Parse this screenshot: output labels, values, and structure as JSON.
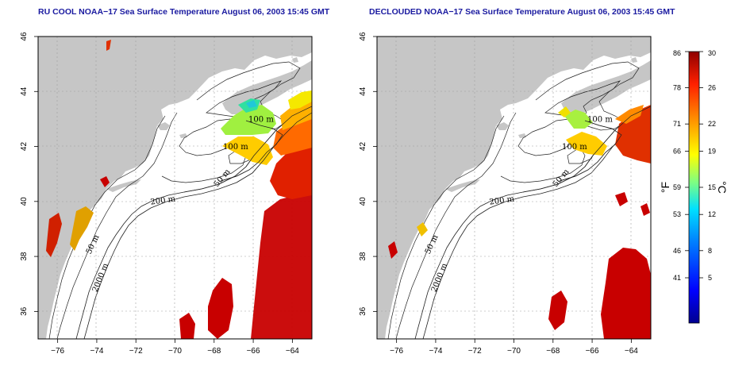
{
  "titles": {
    "left": "RU COOL NOAA−17 Sea Surface Temperature August 06, 2003 15:45 GMT",
    "right": "DECLOUDED NOAA−17 Sea Surface Temperature August 06, 2003 15:45 GMT"
  },
  "axes": {
    "x_ticks": [
      -76,
      -74,
      -72,
      -70,
      -68,
      -66,
      -64
    ],
    "x_labels": [
      "−76",
      "−74",
      "−72",
      "−70",
      "−68",
      "−66",
      "−64"
    ],
    "y_ticks": [
      36,
      38,
      40,
      42,
      44,
      46
    ],
    "y_labels": [
      "36",
      "38",
      "40",
      "42",
      "44",
      "46"
    ],
    "lon_range": [
      -77,
      -63
    ],
    "lat_range": [
      35,
      46
    ]
  },
  "contour_labels": [
    {
      "text": "100 m",
      "lon": -65.6,
      "lat": 42.9
    },
    {
      "text": "100 m",
      "lon": -66.9,
      "lat": 41.9
    },
    {
      "text": "50 m",
      "lon": -67.5,
      "lat": 40.8
    },
    {
      "text": "200 m",
      "lon": -70.6,
      "lat": 39.95
    },
    {
      "text": "50 m",
      "lon": -74.1,
      "lat": 38.4
    },
    {
      "text": "2000 m",
      "lon": -73.7,
      "lat": 37.2
    }
  ],
  "colorbar": {
    "fahrenheit_labels": [
      "86",
      "78",
      "71",
      "66",
      "59",
      "53",
      "46",
      "41"
    ],
    "celsius_labels": [
      "30",
      "26",
      "22",
      "19",
      "15",
      "12",
      "8",
      "5"
    ],
    "celsius_values": [
      30,
      26,
      22,
      19,
      15,
      12,
      8,
      5
    ],
    "range_c": [
      0,
      30
    ],
    "unit_f": "°F",
    "unit_c": "°C"
  },
  "colors": {
    "land": "#c6c6c6",
    "ocean": "#ffffff",
    "title": "#1a1aa0",
    "grid": "#a0a0a0"
  }
}
